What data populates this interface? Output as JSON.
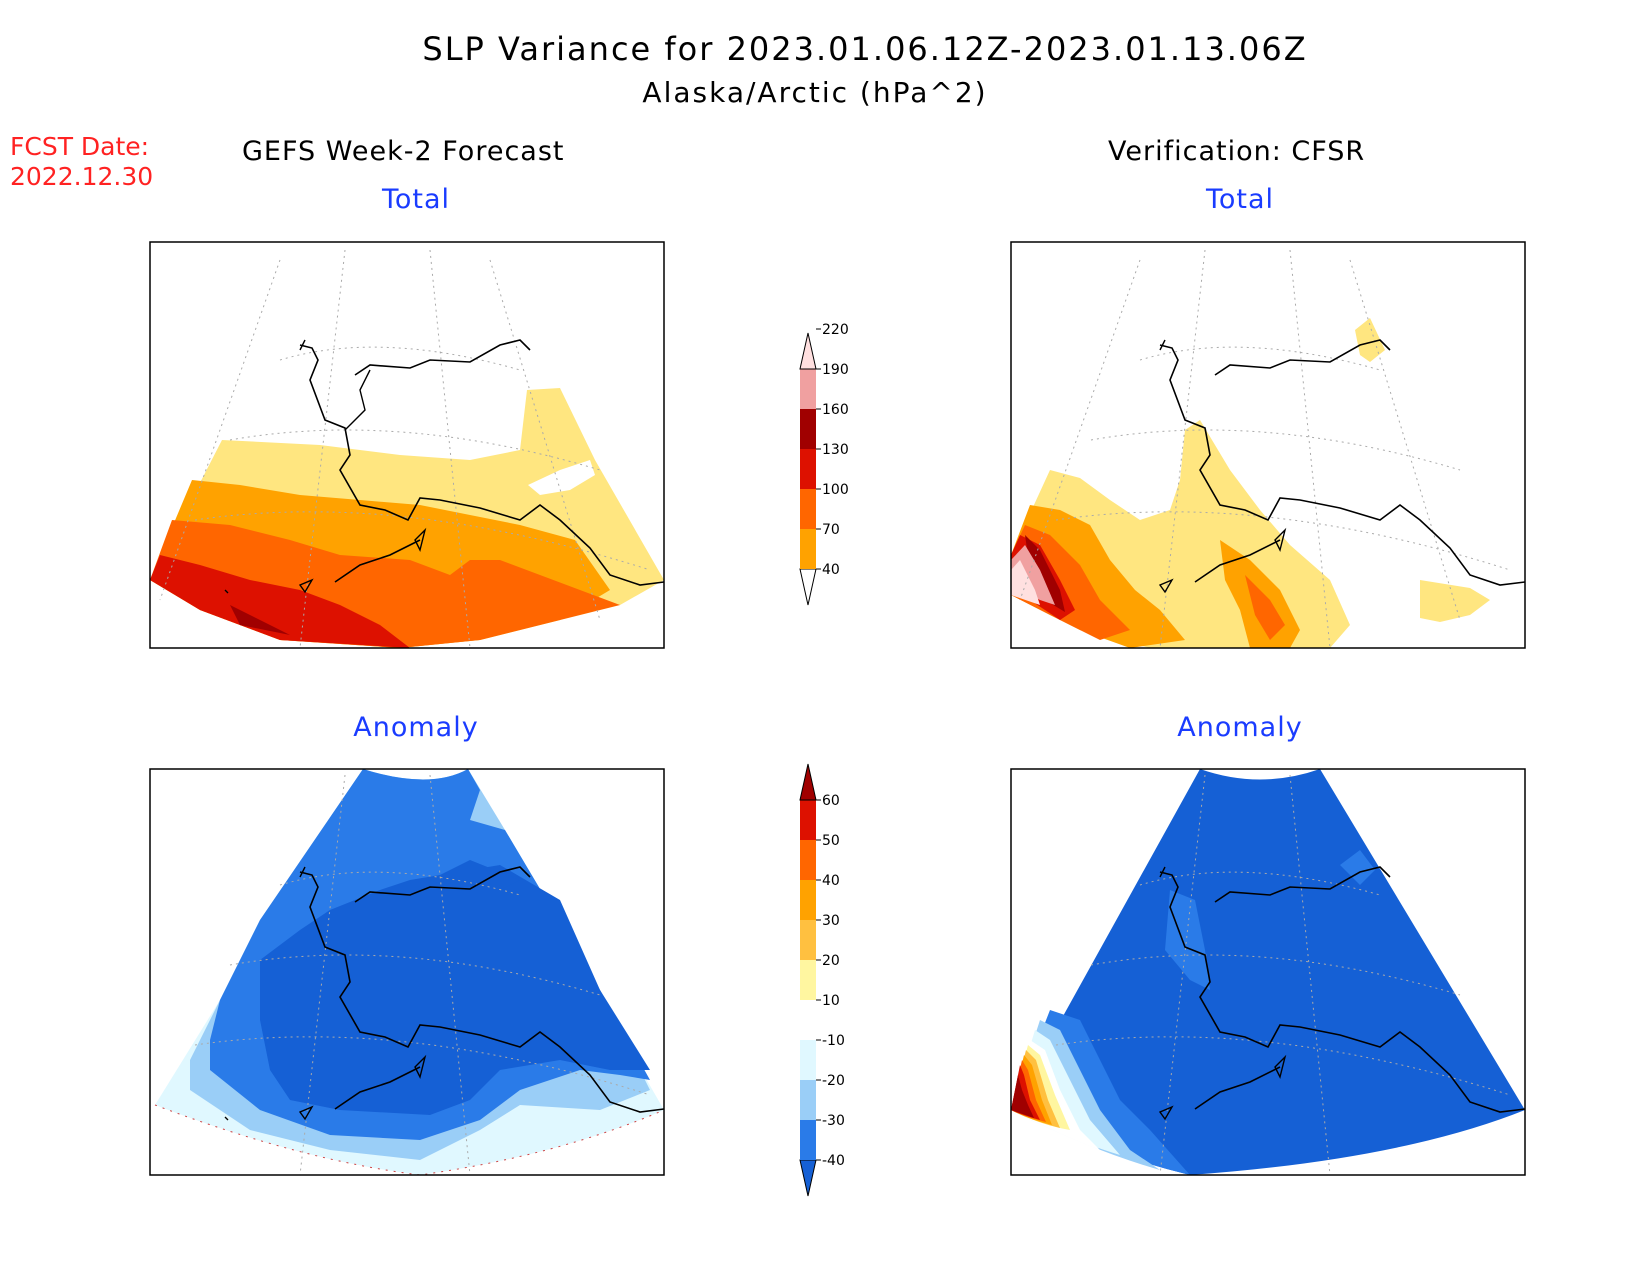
{
  "title": {
    "line1": "SLP Variance for 2023.01.06.12Z-2023.01.13.06Z",
    "line2": "Alaska/Arctic (hPa^2)"
  },
  "fcst_date": {
    "label": "FCST Date:",
    "value": "2022.12.30"
  },
  "columns": {
    "left_heading": "GEFS Week-2 Forecast",
    "right_heading": "Verification: CFSR"
  },
  "panels": {
    "top_left_label": "Total",
    "top_right_label": "Total",
    "bottom_left_label": "Anomaly",
    "bottom_right_label": "Anomaly"
  },
  "legends": {
    "total": {
      "levels": [
        "40",
        "70",
        "100",
        "130",
        "160",
        "190",
        "220"
      ],
      "colors": [
        "#ffe680",
        "#ffa200",
        "#ff6600",
        "#dd1100",
        "#a00000",
        "#f0a0a0",
        "#ffe0e0"
      ]
    },
    "anomaly": {
      "levels": [
        "-40",
        "-30",
        "-20",
        "-10",
        "10",
        "20",
        "30",
        "40",
        "50",
        "60"
      ],
      "colors": [
        "#1560d5",
        "#2a7be8",
        "#9acef7",
        "#e0f8ff",
        "#ffffff",
        "#fff6a0",
        "#ffc040",
        "#ffa200",
        "#ff6600",
        "#dd1100",
        "#a00000"
      ]
    }
  },
  "colors": {
    "title_text": "#000000",
    "fcst_text": "#ff2222",
    "panel_label": "#1a3cff"
  }
}
